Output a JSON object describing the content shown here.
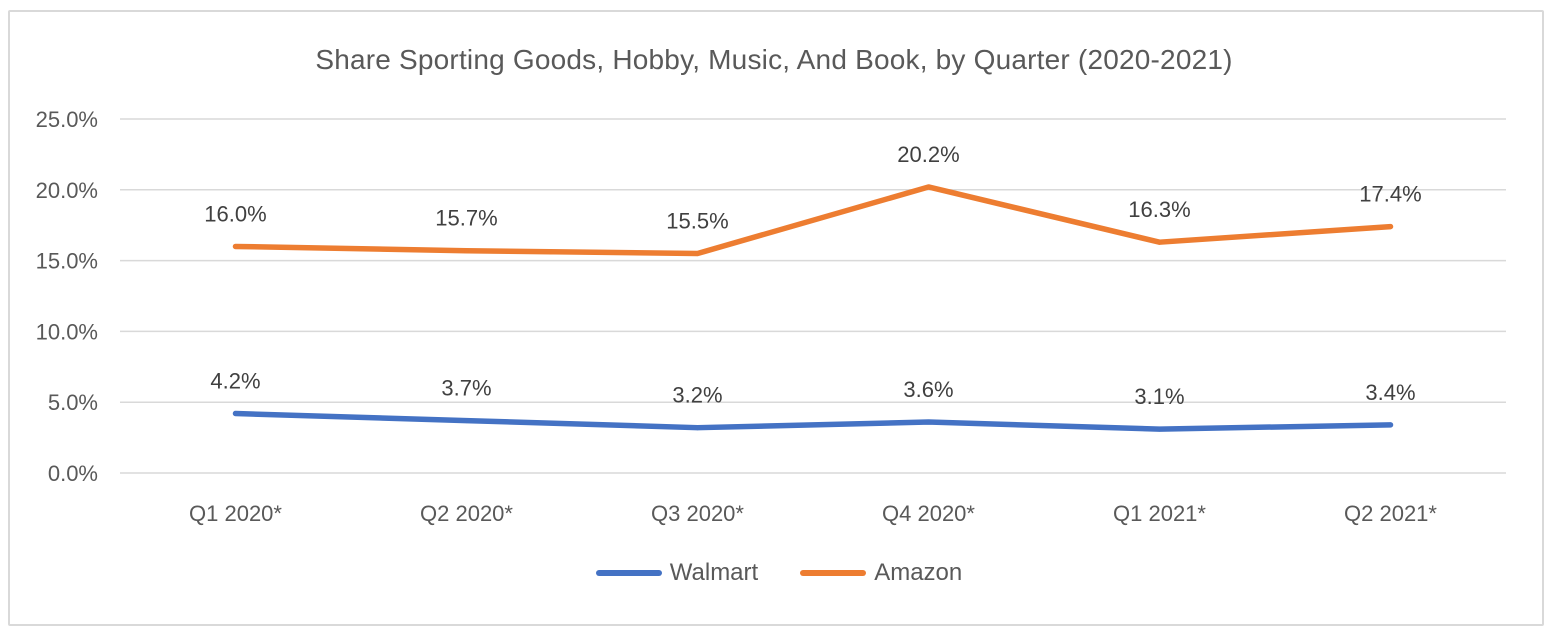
{
  "chart_data": {
    "type": "line",
    "title": "Share Sporting Goods, Hobby, Music, And Book, by Quarter (2020-2021)",
    "categories": [
      "Q1 2020*",
      "Q2 2020*",
      "Q3 2020*",
      "Q4 2020*",
      "Q1 2021*",
      "Q2 2021*"
    ],
    "y_ticks": [
      "0.0%",
      "5.0%",
      "10.0%",
      "15.0%",
      "20.0%",
      "25.0%"
    ],
    "ylim": [
      0,
      25
    ],
    "y_unit": "%",
    "grid": true,
    "legend_position": "bottom",
    "series": [
      {
        "name": "Walmart",
        "color": "#4472c4",
        "values": [
          4.2,
          3.7,
          3.2,
          3.6,
          3.1,
          3.4
        ],
        "labels": [
          "4.2%",
          "3.7%",
          "3.2%",
          "3.6%",
          "3.1%",
          "3.4%"
        ]
      },
      {
        "name": "Amazon",
        "color": "#ed7d31",
        "values": [
          16.0,
          15.7,
          15.5,
          20.2,
          16.3,
          17.4
        ],
        "labels": [
          "16.0%",
          "15.7%",
          "15.5%",
          "20.2%",
          "16.3%",
          "17.4%"
        ]
      }
    ]
  }
}
